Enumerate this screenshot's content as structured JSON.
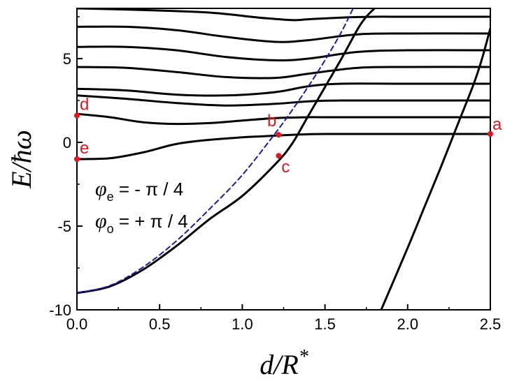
{
  "chart_data": {
    "type": "line",
    "xlabel": "d/R*",
    "ylabel": "E/ħω",
    "xlim": [
      0,
      2.5
    ],
    "ylim": [
      -10,
      8
    ],
    "x_ticks": [
      0.0,
      0.5,
      1.0,
      1.5,
      2.0,
      2.5
    ],
    "x_tick_labels": [
      "0.0",
      "0.5",
      "1.0",
      "1.5",
      "2.0",
      "2.5"
    ],
    "y_ticks": [
      -10,
      -5,
      0,
      5
    ],
    "y_tick_labels": [
      "-10",
      "-5",
      "0",
      "5"
    ],
    "grid": false,
    "annotations": [
      {
        "var": "φ",
        "sub": "e",
        "expr": " = - π / 4"
      },
      {
        "var": "φ",
        "sub": "o",
        "expr": " = + π / 4"
      }
    ],
    "series": [
      {
        "style": "solid",
        "color": "#000000",
        "x": [
          0,
          0.2,
          0.4,
          0.6,
          0.8,
          1.0,
          1.2,
          1.3,
          1.4,
          1.5,
          1.6,
          1.7,
          1.75,
          1.8
        ],
        "y": [
          -9.0,
          -8.6,
          -7.6,
          -6.2,
          -4.6,
          -3.2,
          -1.3,
          -0.1,
          1.6,
          3.3,
          5.0,
          6.8,
          7.5,
          8.0
        ]
      },
      {
        "style": "solid",
        "color": "#000000",
        "x": [
          0,
          0.2,
          0.4,
          0.6,
          0.8,
          1.0,
          1.1,
          1.2,
          1.3,
          1.5,
          2.0,
          2.5
        ],
        "y": [
          -1.0,
          -0.95,
          -0.6,
          -0.1,
          0.15,
          0.3,
          0.35,
          0.4,
          0.45,
          0.5,
          0.5,
          0.5
        ]
      },
      {
        "style": "solid",
        "color": "#000000",
        "x": [
          0,
          0.2,
          0.4,
          0.6,
          0.8,
          1.0,
          1.2,
          1.4,
          1.5,
          2.0,
          2.5
        ],
        "y": [
          1.7,
          1.5,
          1.2,
          1.1,
          1.15,
          1.3,
          1.45,
          1.5,
          1.5,
          1.5,
          1.5
        ]
      },
      {
        "style": "solid",
        "color": "#000000",
        "x": [
          0,
          0.3,
          0.6,
          0.9,
          1.2,
          1.4,
          1.6,
          2.0,
          2.5
        ],
        "y": [
          2.8,
          2.6,
          2.35,
          2.2,
          2.3,
          2.45,
          2.5,
          2.5,
          2.5
        ]
      },
      {
        "style": "solid",
        "color": "#000000",
        "x": [
          0,
          0.3,
          0.6,
          0.9,
          1.2,
          1.4,
          1.6,
          2.0,
          2.5
        ],
        "y": [
          3.2,
          3.1,
          2.85,
          2.8,
          3.0,
          3.35,
          3.5,
          3.5,
          3.5
        ]
      },
      {
        "style": "solid",
        "color": "#000000",
        "x": [
          0,
          0.3,
          0.6,
          0.9,
          1.2,
          1.4,
          1.7,
          2.0,
          2.5
        ],
        "y": [
          4.5,
          4.45,
          4.2,
          3.9,
          3.85,
          4.1,
          4.45,
          4.5,
          4.5
        ]
      },
      {
        "style": "solid",
        "color": "#000000",
        "x": [
          0,
          0.3,
          0.6,
          0.9,
          1.2,
          1.4,
          1.7,
          2.0,
          2.5
        ],
        "y": [
          5.7,
          5.7,
          5.5,
          5.1,
          4.9,
          5.0,
          5.4,
          5.5,
          5.5
        ]
      },
      {
        "style": "solid",
        "color": "#000000",
        "x": [
          0,
          0.3,
          0.6,
          0.9,
          1.2,
          1.4,
          1.7,
          2.0,
          2.5
        ],
        "y": [
          6.9,
          6.9,
          6.7,
          6.3,
          6.0,
          6.1,
          6.45,
          6.5,
          6.5
        ]
      },
      {
        "style": "solid",
        "color": "#000000",
        "x": [
          0,
          0.4,
          0.8,
          1.1,
          1.3,
          1.4,
          1.6,
          1.8,
          2.0,
          2.5
        ],
        "y": [
          8.0,
          7.9,
          7.75,
          7.45,
          7.3,
          7.35,
          7.45,
          7.5,
          7.5,
          7.5
        ]
      },
      {
        "style": "solid",
        "color": "#000000",
        "x": [
          1.84,
          2.0,
          2.1,
          2.2,
          2.3,
          2.4,
          2.45,
          2.5
        ],
        "y": [
          -10.0,
          -6.3,
          -3.9,
          -1.5,
          1.0,
          3.5,
          5.0,
          6.8
        ]
      },
      {
        "style": "dashed",
        "color": "#1a1aa8",
        "x": [
          0,
          0.2,
          0.4,
          0.6,
          0.8,
          1.0,
          1.2,
          1.3,
          1.4,
          1.5,
          1.6,
          1.67
        ],
        "y": [
          -9.0,
          -8.55,
          -7.45,
          -5.9,
          -4.0,
          -1.95,
          0.55,
          1.9,
          3.35,
          4.9,
          6.6,
          8.0
        ]
      }
    ],
    "points": [
      {
        "label": "a",
        "x": 2.5,
        "y": 0.5
      },
      {
        "label": "b",
        "x": 1.22,
        "y": 0.45
      },
      {
        "label": "c",
        "x": 1.22,
        "y": -0.8
      },
      {
        "label": "d",
        "x": 0.0,
        "y": 1.6
      },
      {
        "label": "e",
        "x": 0.0,
        "y": -1.0
      }
    ],
    "point_color": "#e8141c"
  }
}
